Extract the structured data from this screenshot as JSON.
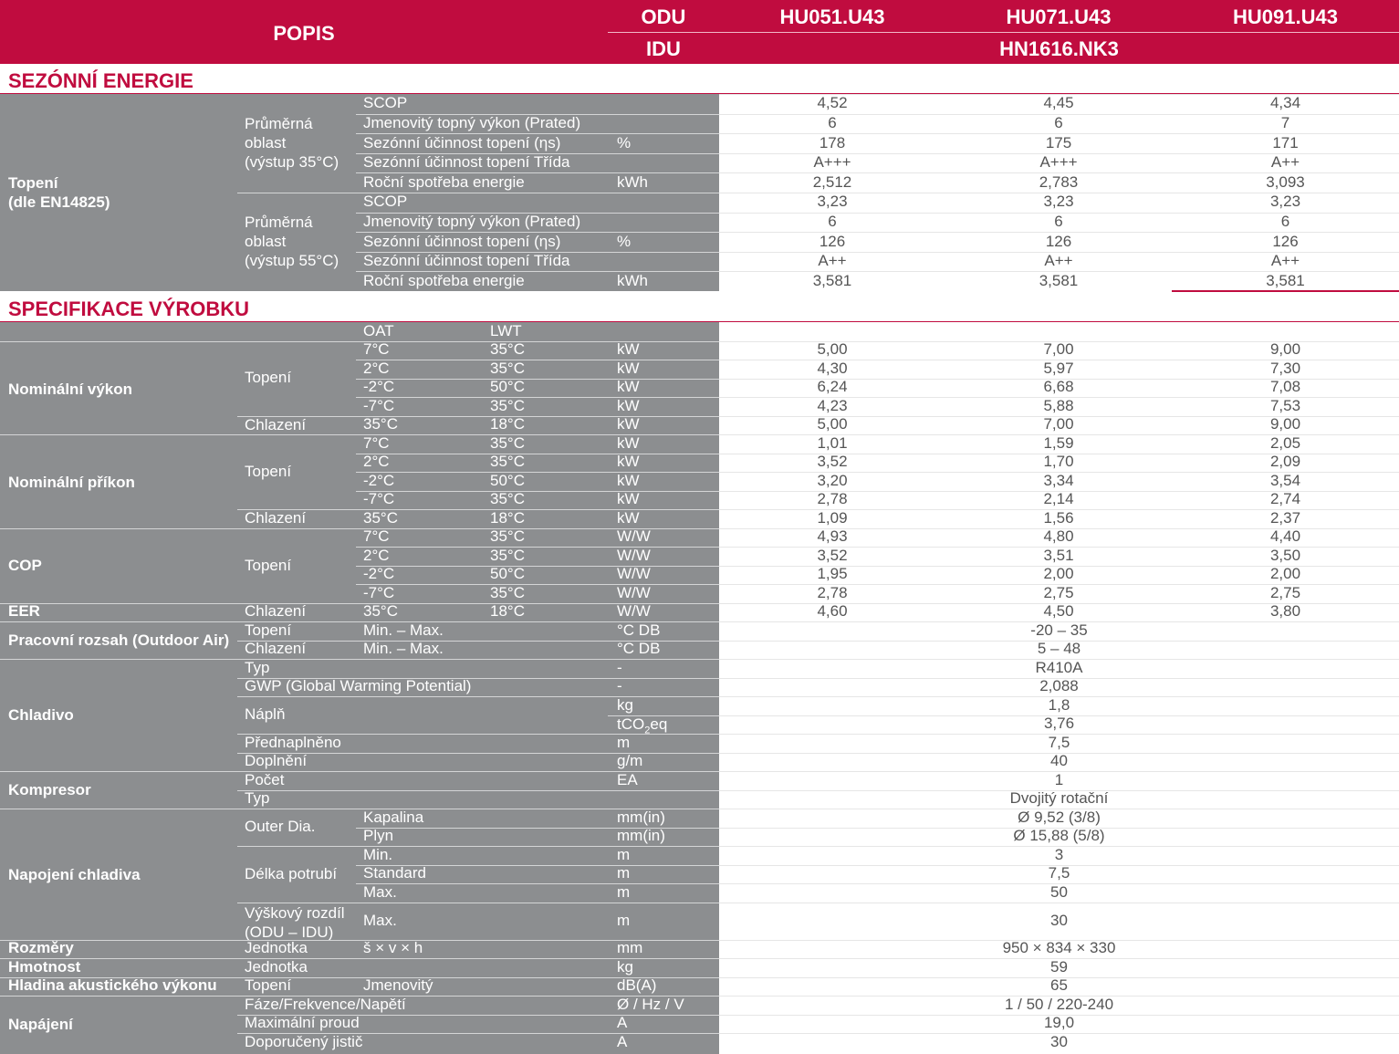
{
  "header": {
    "popis": "POPIS",
    "odu": "ODU",
    "idu": "IDU",
    "models": [
      "HU051.U43",
      "HU071.U43",
      "HU091.U43"
    ],
    "idu_model": "HN1616.NK3"
  },
  "sec1": {
    "title": "SEZÓNNÍ ENERGIE",
    "group": "Topení\n(dle EN14825)",
    "sub35": "Průměrná\noblast\n(výstup 35°C)",
    "sub55": "Průměrná\noblast\n(výstup 55°C)",
    "rows35": [
      {
        "p": "SCOP",
        "u": "",
        "v": [
          "4,52",
          "4,45",
          "4,34"
        ]
      },
      {
        "p": "Jmenovitý topný výkon (Prated)",
        "u": "",
        "v": [
          "6",
          "6",
          "7"
        ]
      },
      {
        "p": "Sezónní účinnost topení (ηs)",
        "u": "%",
        "v": [
          "178",
          "175",
          "171"
        ]
      },
      {
        "p": "Sezónní účinnost topení Třída",
        "u": "",
        "v": [
          "A+++",
          "A+++",
          "A++"
        ]
      },
      {
        "p": "Roční spotřeba energie",
        "u": "kWh",
        "v": [
          "2,512",
          "2,783",
          "3,093"
        ]
      }
    ],
    "rows55": [
      {
        "p": "SCOP",
        "u": "",
        "v": [
          "3,23",
          "3,23",
          "3,23"
        ]
      },
      {
        "p": "Jmenovitý topný výkon (Prated)",
        "u": "",
        "v": [
          "6",
          "6",
          "6"
        ]
      },
      {
        "p": "Sezónní účinnost topení (ηs)",
        "u": "%",
        "v": [
          "126",
          "126",
          "126"
        ]
      },
      {
        "p": "Sezónní účinnost topení Třída",
        "u": "",
        "v": [
          "A++",
          "A++",
          "A++"
        ]
      },
      {
        "p": "Roční spotřeba energie",
        "u": "kWh",
        "v": [
          "3,581",
          "3,581",
          "3,581"
        ]
      }
    ]
  },
  "sec2": {
    "title": "SPECIFIKACE VÝROBKU",
    "oat": "OAT",
    "lwt": "LWT",
    "perf": [
      {
        "group": "Nominální výkon",
        "sub1": "Topení",
        "sub2": "Chlazení",
        "rows": [
          {
            "o": "7°C",
            "l": "35°C",
            "u": "kW",
            "v": [
              "5,00",
              "7,00",
              "9,00"
            ]
          },
          {
            "o": "2°C",
            "l": "35°C",
            "u": "kW",
            "v": [
              "4,30",
              "5,97",
              "7,30"
            ]
          },
          {
            "o": "-2°C",
            "l": "50°C",
            "u": "kW",
            "v": [
              "6,24",
              "6,68",
              "7,08"
            ]
          },
          {
            "o": "-7°C",
            "l": "35°C",
            "u": "kW",
            "v": [
              "4,23",
              "5,88",
              "7,53"
            ]
          },
          {
            "o": "35°C",
            "l": "18°C",
            "u": "kW",
            "v": [
              "5,00",
              "7,00",
              "9,00"
            ]
          }
        ]
      },
      {
        "group": "Nominální příkon",
        "sub1": "Topení",
        "sub2": "Chlazení",
        "rows": [
          {
            "o": "7°C",
            "l": "35°C",
            "u": "kW",
            "v": [
              "1,01",
              "1,59",
              "2,05"
            ]
          },
          {
            "o": "2°C",
            "l": "35°C",
            "u": "kW",
            "v": [
              "3,52",
              "1,70",
              "2,09"
            ]
          },
          {
            "o": "-2°C",
            "l": "50°C",
            "u": "kW",
            "v": [
              "3,20",
              "3,34",
              "3,54"
            ]
          },
          {
            "o": "-7°C",
            "l": "35°C",
            "u": "kW",
            "v": [
              "2,78",
              "2,14",
              "2,74"
            ]
          },
          {
            "o": "35°C",
            "l": "18°C",
            "u": "kW",
            "v": [
              "1,09",
              "1,56",
              "2,37"
            ]
          }
        ]
      }
    ],
    "cop": {
      "group": "COP",
      "sub": "Topení",
      "rows": [
        {
          "o": "7°C",
          "l": "35°C",
          "u": "W/W",
          "v": [
            "4,93",
            "4,80",
            "4,40"
          ]
        },
        {
          "o": "2°C",
          "l": "35°C",
          "u": "W/W",
          "v": [
            "3,52",
            "3,51",
            "3,50"
          ]
        },
        {
          "o": "-2°C",
          "l": "50°C",
          "u": "W/W",
          "v": [
            "1,95",
            "2,00",
            "2,00"
          ]
        },
        {
          "o": "-7°C",
          "l": "35°C",
          "u": "W/W",
          "v": [
            "2,78",
            "2,75",
            "2,75"
          ]
        }
      ]
    },
    "eer": {
      "group": "EER",
      "sub": "Chlazení",
      "o": "35°C",
      "l": "18°C",
      "u": "W/W",
      "v": [
        "4,60",
        "4,50",
        "3,80"
      ]
    },
    "range": {
      "group": "Pracovní rozsah (Outdoor Air)",
      "rows": [
        {
          "s": "Topení",
          "p": "Min. – Max.",
          "u": "°C DB",
          "v": "-20 – 35"
        },
        {
          "s": "Chlazení",
          "p": "Min. – Max.",
          "u": "°C DB",
          "v": "5 – 48"
        }
      ]
    },
    "refrig": {
      "group": "Chladivo",
      "typ": "Typ",
      "typ_u": "-",
      "typ_v": "R410A",
      "gwp": "GWP (Global Warming Potential)",
      "gwp_u": "-",
      "gwp_v": "2,088",
      "napln": "Náplň",
      "napln_u1": "kg",
      "napln_v1": "1,8",
      "napln_u2_a": "tCO",
      "napln_u2_sub": "2",
      "napln_u2_b": "eq",
      "napln_v2": "3,76",
      "pred": "Přednaplněno",
      "pred_u": "m",
      "pred_v": "7,5",
      "dopl": "Doplnění",
      "dopl_u": "g/m",
      "dopl_v": "40"
    },
    "comp": {
      "group": "Kompresor",
      "pocet": "Počet",
      "pocet_u": "EA",
      "pocet_v": "1",
      "typ": "Typ",
      "typ_v": "Dvojitý rotační"
    },
    "pipe": {
      "group": "Napojení chladiva",
      "outer": "Outer Dia.",
      "kap": "Kapalina",
      "kap_u": "mm(in)",
      "kap_v": "Ø 9,52 (3/8)",
      "plyn": "Plyn",
      "plyn_u": "mm(in)",
      "plyn_v": "Ø 15,88 (5/8)",
      "delka": "Délka potrubí",
      "min": "Min.",
      "min_u": "m",
      "min_v": "3",
      "std": "Standard",
      "std_u": "m",
      "std_v": "7,5",
      "max": "Max.",
      "max_u": "m",
      "max_v": "50",
      "vysk": "Výškový rozdíl\n(ODU – IDU)",
      "vmax": "Max.",
      "vmax_u": "m",
      "vmax_v": "30"
    },
    "dims": {
      "group": "Rozměry",
      "s": "Jednotka",
      "p": "š × v × h",
      "u": "mm",
      "v": "950 × 834 × 330"
    },
    "weight": {
      "group": "Hmotnost",
      "s": "Jednotka",
      "u": "kg",
      "v": "59"
    },
    "sound": {
      "group": "Hladina akustického výkonu",
      "s": "Topení",
      "p": "Jmenovitý",
      "u": "dB(A)",
      "v": "65"
    },
    "power": {
      "group": "Napájení",
      "rows": [
        {
          "s": "Fáze/Frekvence/Napětí",
          "u": "Ø / Hz / V",
          "v": "1 / 50 / 220-240"
        },
        {
          "s": "Maximální proud",
          "u": "A",
          "v": "19,0"
        },
        {
          "s": "Doporučený jistič",
          "u": "A",
          "v": "30"
        }
      ]
    }
  }
}
